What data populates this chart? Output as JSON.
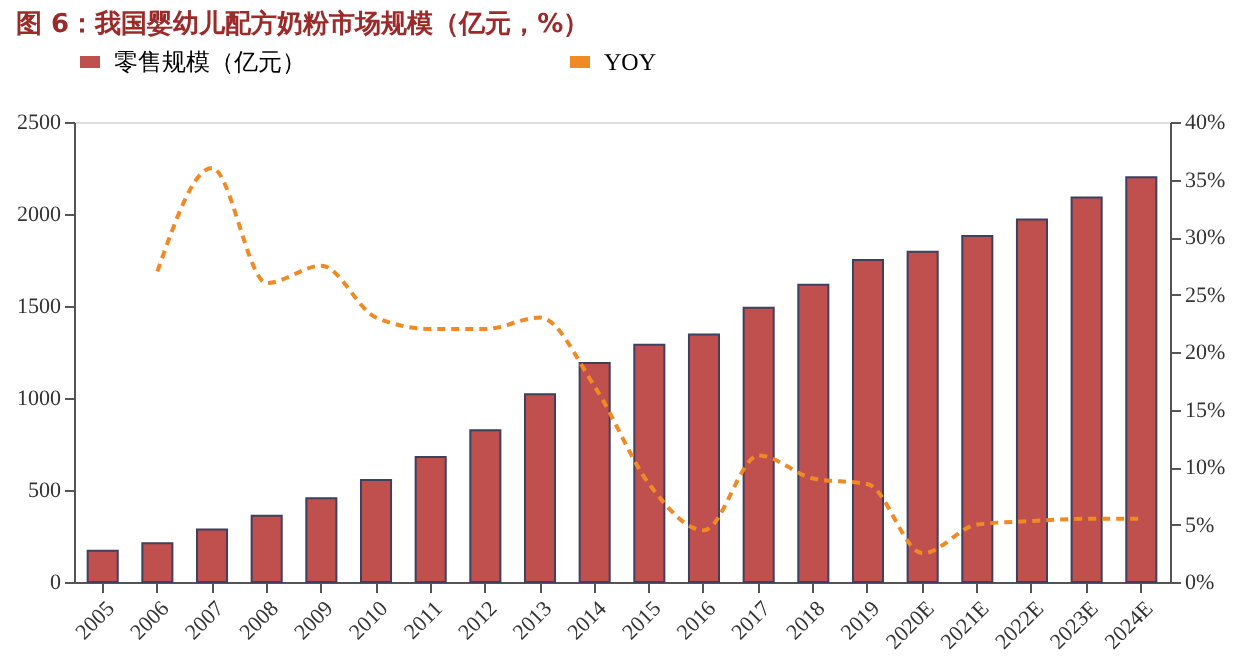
{
  "chart_data": {
    "type": "bar",
    "title": "图 6：我国婴幼儿配方奶粉市场规模（亿元，%）",
    "categories": [
      "2005",
      "2006",
      "2007",
      "2008",
      "2009",
      "2010",
      "2011",
      "2012",
      "2013",
      "2014",
      "2015",
      "2016",
      "2017",
      "2018",
      "2019",
      "2020E",
      "2021E",
      "2022E",
      "2023E",
      "2024E"
    ],
    "series": [
      {
        "name": "零售规模（亿元）",
        "color": "#c0504d",
        "values": [
          170,
          210,
          285,
          360,
          455,
          555,
          680,
          825,
          1020,
          1190,
          1290,
          1345,
          1490,
          1615,
          1750,
          1795,
          1880,
          1970,
          2090,
          2200
        ]
      },
      {
        "name": "YOY",
        "type": "line",
        "axis": "y2",
        "color": "#f08a24",
        "line_style": "dashed",
        "values": [
          null,
          27,
          36,
          26,
          27.5,
          23,
          22,
          22,
          23,
          17,
          8.5,
          4.5,
          11,
          9,
          8.5,
          2.5,
          5,
          5.3,
          5.5,
          5.5
        ]
      }
    ],
    "ylim": [
      0,
      2500
    ],
    "yticks": [
      0,
      500,
      1000,
      1500,
      2000,
      2500
    ],
    "y2lim": [
      0,
      40
    ],
    "y2ticks": [
      {
        "value": 0,
        "label": "0%"
      },
      {
        "value": 5,
        "label": "5%"
      },
      {
        "value": 10,
        "label": "10%"
      },
      {
        "value": 15,
        "label": "15%"
      },
      {
        "value": 20,
        "label": "20%"
      },
      {
        "value": 25,
        "label": "25%"
      },
      {
        "value": 30,
        "label": "30%"
      },
      {
        "value": 35,
        "label": "35%"
      },
      {
        "value": 40,
        "label": "40%"
      }
    ],
    "grid": false,
    "legend": "top",
    "marker": "none"
  }
}
